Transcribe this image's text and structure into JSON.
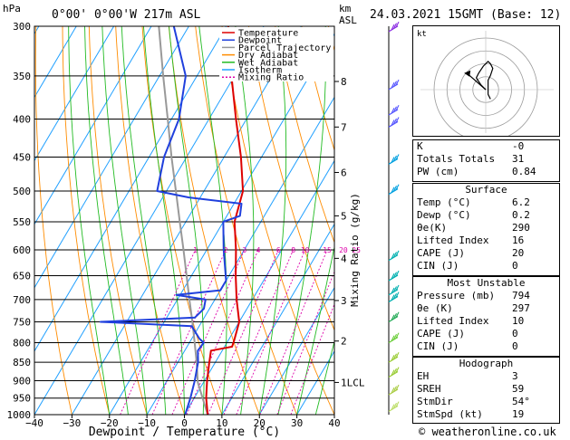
{
  "header": {
    "unit": "hPa",
    "location": "0°00' 0°00'W 217m ASL",
    "km_label": "km",
    "asl_label": "ASL",
    "datetime": "24.03.2021 15GMT (Base: 12)"
  },
  "chart_data": {
    "type": "skew-t",
    "xlabel": "Dewpoint / Temperature (°C)",
    "ylabel": "Mixing Ratio (g/kg)",
    "pressure_ticks": [
      300,
      350,
      400,
      450,
      500,
      550,
      600,
      650,
      700,
      750,
      800,
      850,
      900,
      950,
      1000
    ],
    "pressure_tick_labels": [
      "300",
      "350",
      "400",
      "450",
      "500",
      "550",
      "600",
      "650",
      "700",
      "750",
      "800",
      "850",
      "900",
      "950",
      "1000"
    ],
    "temp_ticks": [
      -40,
      -30,
      -20,
      -10,
      0,
      10,
      20,
      30,
      40
    ],
    "temp_tick_labels": [
      "−40",
      "−30",
      "−20",
      "−10",
      "0",
      "10",
      "20",
      "30",
      "40"
    ],
    "xlim": [
      -40,
      40
    ],
    "ylim": [
      1000,
      300
    ],
    "km_ticks": [
      {
        "label": "8",
        "p": 356
      },
      {
        "label": "7",
        "p": 410
      },
      {
        "label": "6",
        "p": 472
      },
      {
        "label": "5",
        "p": 540
      },
      {
        "label": "4",
        "p": 616
      },
      {
        "label": "3",
        "p": 702
      },
      {
        "label": "2",
        "p": 796
      },
      {
        "label": "1LCL",
        "p": 905
      }
    ],
    "mixing_ratio_labels": [
      "1",
      "2",
      "3",
      "4",
      "6",
      "8",
      "10",
      "15",
      "20",
      "25"
    ],
    "mixing_ratios": [
      1,
      2,
      3,
      4,
      6,
      8,
      10,
      15,
      20,
      25
    ],
    "temperature": {
      "name": "Temperature",
      "p": [
        1000,
        950,
        900,
        850,
        820,
        810,
        795,
        750,
        700,
        650,
        600,
        550,
        500,
        450,
        400,
        350,
        300
      ],
      "t": [
        6.2,
        3.2,
        0.7,
        -1.6,
        -3.0,
        2.0,
        1.6,
        0.0,
        -4.2,
        -8.2,
        -12.2,
        -17.0,
        -19.6,
        -25.5,
        -32.8,
        -40.8,
        -49.5
      ]
    },
    "dewpoint": {
      "name": "Dewpoint",
      "p": [
        1000,
        950,
        900,
        850,
        820,
        800,
        790,
        760,
        750,
        740,
        720,
        700,
        690,
        680,
        660,
        600,
        550,
        540,
        520,
        510,
        500,
        450,
        400,
        350,
        300
      ],
      "t": [
        0.2,
        -1.0,
        -2.6,
        -4.6,
        -6.5,
        -6.2,
        -8.0,
        -12.0,
        -37.0,
        -12.5,
        -11.5,
        -12.5,
        -21.0,
        -10.0,
        -10.0,
        -15.5,
        -20.0,
        -16.5,
        -18.0,
        -33.0,
        -42.5,
        -46.0,
        -48.0,
        -53.0,
        -64.0
      ]
    },
    "parcel": {
      "name": "Parcel Trajectory",
      "p": [
        1000,
        905,
        850,
        800,
        750,
        700,
        650,
        600,
        550,
        500,
        450,
        400,
        350,
        300
      ],
      "t": [
        6.2,
        -1.5,
        -5.0,
        -8.6,
        -12.5,
        -16.8,
        -21.3,
        -26.2,
        -31.6,
        -37.5,
        -44.0,
        -51.0,
        -59.0,
        -68.0
      ]
    },
    "legend": [
      "Temperature",
      "Dewpoint",
      "Parcel Trajectory",
      "Dry Adiabat",
      "Wet Adiabat",
      "Isotherm",
      "Mixing Ratio"
    ],
    "legend_colors": [
      "#dd0000",
      "#2040dd",
      "#999999",
      "#ff8c00",
      "#22bb22",
      "#20a0ff",
      "#dd00aa"
    ],
    "wind_barbs": [
      {
        "p": 305,
        "color": "#8a2be2"
      },
      {
        "p": 365,
        "color": "#5555ff"
      },
      {
        "p": 395,
        "color": "#5555ff"
      },
      {
        "p": 410,
        "color": "#5555ff"
      },
      {
        "p": 460,
        "color": "#00a0e0"
      },
      {
        "p": 505,
        "color": "#00a0e0"
      },
      {
        "p": 620,
        "color": "#00b0b0"
      },
      {
        "p": 660,
        "color": "#00b0b0"
      },
      {
        "p": 690,
        "color": "#00b0b0"
      },
      {
        "p": 705,
        "color": "#00b0b0"
      },
      {
        "p": 750,
        "color": "#22aa55"
      },
      {
        "p": 800,
        "color": "#66cc33"
      },
      {
        "p": 850,
        "color": "#99cc33"
      },
      {
        "p": 890,
        "color": "#99cc33"
      },
      {
        "p": 940,
        "color": "#aacc44"
      },
      {
        "p": 990,
        "color": "#bbdd66"
      }
    ]
  },
  "hodograph": {
    "unit": "kt",
    "points": [
      [
        0,
        0
      ],
      [
        -2,
        -2
      ],
      [
        -4,
        -5
      ],
      [
        -3,
        -7
      ],
      [
        -1,
        -10
      ],
      [
        1,
        -12
      ],
      [
        2,
        -11
      ],
      [
        3,
        -9
      ],
      [
        2,
        -6
      ],
      [
        1,
        -4
      ],
      [
        1,
        2
      ],
      [
        2,
        4
      ]
    ],
    "sr_motion": [
      1,
      -3
    ],
    "storm_motion": [
      -8,
      -7
    ]
  },
  "indices": {
    "rows": [
      {
        "label": "K",
        "value": "-0"
      },
      {
        "label": "Totals Totals",
        "value": "31"
      },
      {
        "label": "PW (cm)",
        "value": "0.84"
      }
    ]
  },
  "surface": {
    "title": "Surface",
    "rows": [
      {
        "label": "Temp (°C)",
        "value": "6.2"
      },
      {
        "label": "Dewp (°C)",
        "value": "0.2"
      },
      {
        "label": "θe(K)",
        "value": "290"
      },
      {
        "label": "Lifted Index",
        "value": "16"
      },
      {
        "label": "CAPE (J)",
        "value": "20"
      },
      {
        "label": "CIN (J)",
        "value": "0"
      }
    ]
  },
  "most_unstable": {
    "title": "Most Unstable",
    "rows": [
      {
        "label": "Pressure (mb)",
        "value": "794"
      },
      {
        "label": "θe (K)",
        "value": "297"
      },
      {
        "label": "Lifted Index",
        "value": "10"
      },
      {
        "label": "CAPE (J)",
        "value": "0"
      },
      {
        "label": "CIN (J)",
        "value": "0"
      }
    ]
  },
  "hodograph_table": {
    "title": "Hodograph",
    "rows": [
      {
        "label": "EH",
        "value": "3"
      },
      {
        "label": "SREH",
        "value": "59"
      },
      {
        "label": "StmDir",
        "value": "54°"
      },
      {
        "label": "StmSpd (kt)",
        "value": "19"
      }
    ]
  },
  "footer": {
    "copyright": "© weatheronline.co.uk"
  }
}
